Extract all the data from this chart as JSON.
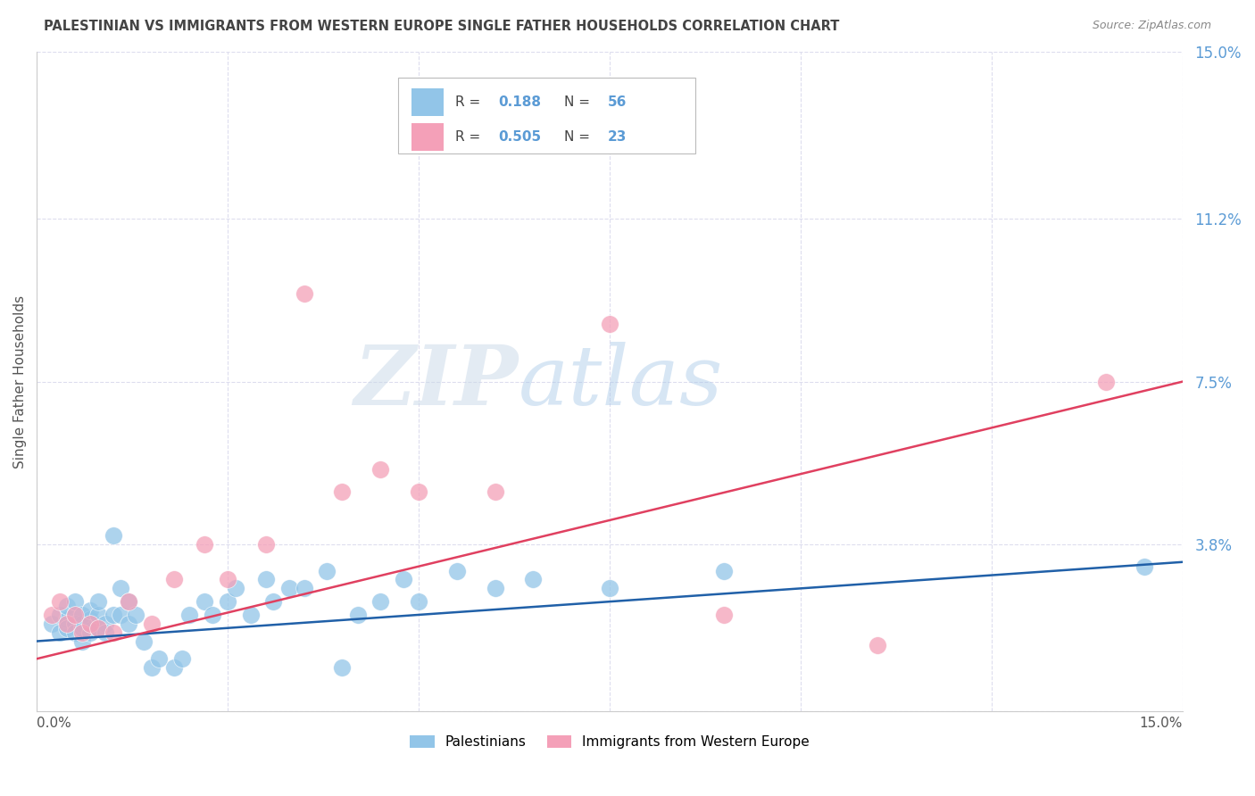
{
  "title": "PALESTINIAN VS IMMIGRANTS FROM WESTERN EUROPE SINGLE FATHER HOUSEHOLDS CORRELATION CHART",
  "source": "Source: ZipAtlas.com",
  "ylabel": "Single Father Households",
  "xmin": 0.0,
  "xmax": 0.15,
  "ymin": 0.0,
  "ymax": 0.15,
  "ytick_vals": [
    0.0,
    0.038,
    0.075,
    0.112,
    0.15
  ],
  "ytick_labels": [
    "",
    "3.8%",
    "7.5%",
    "11.2%",
    "15.0%"
  ],
  "xtick_vals": [
    0.0,
    0.025,
    0.05,
    0.075,
    0.1,
    0.125,
    0.15
  ],
  "legend1_label": "Palestinians",
  "legend2_label": "Immigrants from Western Europe",
  "r1": "0.188",
  "n1": "56",
  "r2": "0.505",
  "n2": "23",
  "color1": "#92C5E8",
  "color2": "#F4A0B8",
  "line_color1": "#2060A8",
  "line_color2": "#E04060",
  "watermark_zip": "ZIP",
  "watermark_atlas": "atlas",
  "title_color": "#444444",
  "axis_label_color": "#5B9BD5",
  "grid_color": "#DDDDEE",
  "blue_scatter_x": [
    0.002,
    0.003,
    0.003,
    0.004,
    0.004,
    0.004,
    0.005,
    0.005,
    0.005,
    0.005,
    0.006,
    0.006,
    0.006,
    0.006,
    0.007,
    0.007,
    0.007,
    0.008,
    0.008,
    0.008,
    0.009,
    0.009,
    0.01,
    0.01,
    0.011,
    0.011,
    0.012,
    0.012,
    0.013,
    0.014,
    0.015,
    0.016,
    0.018,
    0.019,
    0.02,
    0.022,
    0.023,
    0.025,
    0.026,
    0.028,
    0.03,
    0.031,
    0.033,
    0.035,
    0.038,
    0.04,
    0.042,
    0.045,
    0.048,
    0.05,
    0.055,
    0.06,
    0.065,
    0.075,
    0.09,
    0.145
  ],
  "blue_scatter_y": [
    0.02,
    0.022,
    0.018,
    0.021,
    0.019,
    0.024,
    0.022,
    0.02,
    0.018,
    0.025,
    0.02,
    0.016,
    0.019,
    0.022,
    0.018,
    0.021,
    0.023,
    0.019,
    0.022,
    0.025,
    0.02,
    0.018,
    0.04,
    0.022,
    0.028,
    0.022,
    0.025,
    0.02,
    0.022,
    0.016,
    0.01,
    0.012,
    0.01,
    0.012,
    0.022,
    0.025,
    0.022,
    0.025,
    0.028,
    0.022,
    0.03,
    0.025,
    0.028,
    0.028,
    0.032,
    0.01,
    0.022,
    0.025,
    0.03,
    0.025,
    0.032,
    0.028,
    0.03,
    0.028,
    0.032,
    0.033
  ],
  "pink_scatter_x": [
    0.002,
    0.003,
    0.004,
    0.005,
    0.006,
    0.007,
    0.008,
    0.01,
    0.012,
    0.015,
    0.018,
    0.022,
    0.025,
    0.03,
    0.035,
    0.04,
    0.045,
    0.05,
    0.06,
    0.075,
    0.09,
    0.11,
    0.14
  ],
  "pink_scatter_y": [
    0.022,
    0.025,
    0.02,
    0.022,
    0.018,
    0.02,
    0.019,
    0.018,
    0.025,
    0.02,
    0.03,
    0.038,
    0.03,
    0.038,
    0.095,
    0.05,
    0.055,
    0.05,
    0.05,
    0.088,
    0.022,
    0.015,
    0.075
  ],
  "blue_line_x": [
    0.0,
    0.15
  ],
  "blue_line_y": [
    0.016,
    0.034
  ],
  "pink_line_x": [
    0.0,
    0.15
  ],
  "pink_line_y": [
    0.012,
    0.075
  ]
}
